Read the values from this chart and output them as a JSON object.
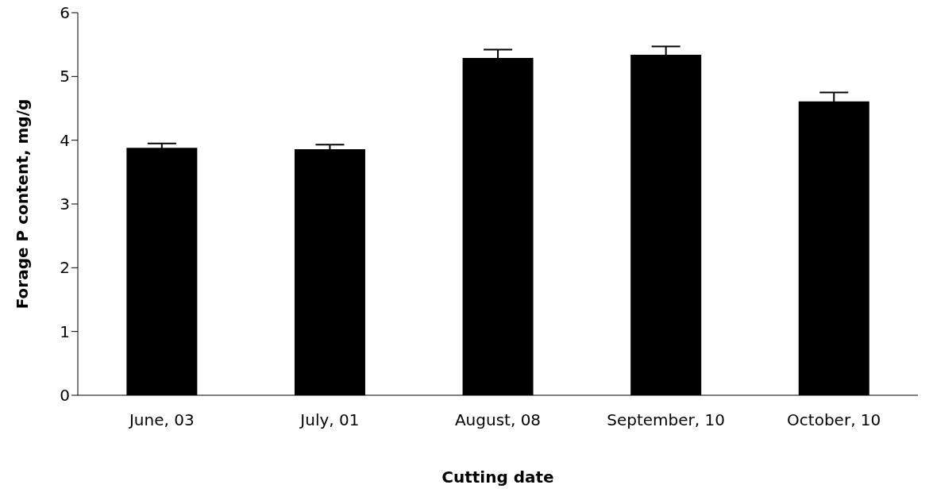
{
  "chart_data": {
    "type": "bar",
    "xlabel": "Cutting date",
    "ylabel": "Forage P content, mg/g",
    "categories": [
      "June, 03",
      "July, 01",
      "August, 08",
      "September, 10",
      "October, 10"
    ],
    "values": [
      3.88,
      3.86,
      5.29,
      5.34,
      4.61
    ],
    "errors": [
      0.07,
      0.07,
      0.13,
      0.13,
      0.14
    ],
    "color": "#000000",
    "ylim": [
      0,
      6
    ],
    "yticks": [
      0,
      1,
      2,
      3,
      4,
      5,
      6
    ],
    "grid": false,
    "legend": false
  }
}
